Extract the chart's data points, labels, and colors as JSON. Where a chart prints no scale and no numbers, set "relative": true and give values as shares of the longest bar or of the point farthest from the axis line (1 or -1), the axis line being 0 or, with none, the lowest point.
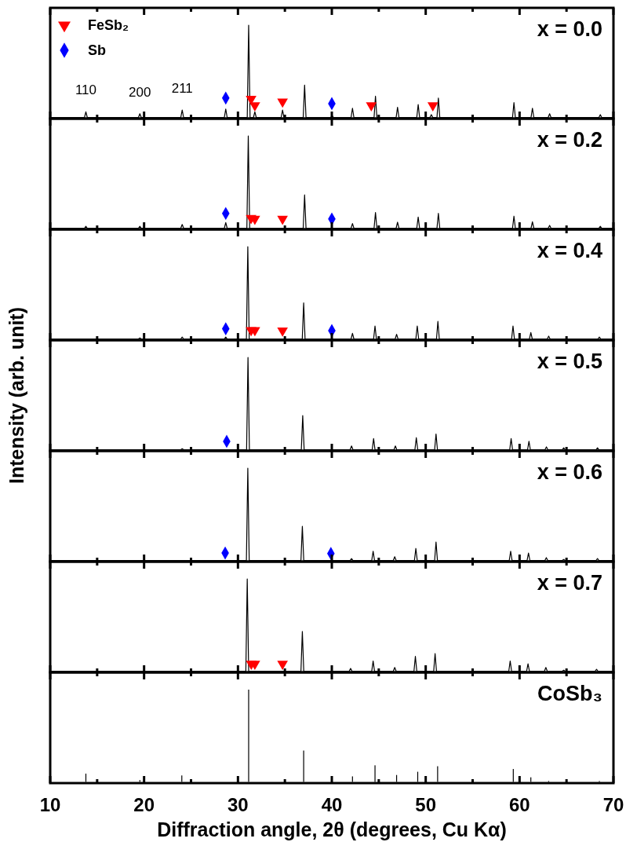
{
  "chart_data": [
    {
      "type": "line",
      "title": "x = 0.0",
      "relative": true,
      "xlim": [
        10,
        70
      ],
      "xticks": [
        10,
        {
          "value": 15,
          "label": null
        },
        20,
        {
          "value": 25,
          "label": null
        },
        30,
        {
          "value": 35,
          "label": null
        },
        40,
        {
          "value": 45,
          "label": null
        },
        50,
        {
          "value": 55,
          "label": null
        },
        60,
        {
          "value": 65,
          "label": null
        },
        70
      ],
      "tick_labels": false,
      "legend": "top left",
      "annotations": [
        {
          "text": "110",
          "x": 13.8,
          "y": 0.06
        },
        {
          "text": "200",
          "x": 19.55,
          "y": 0.04
        },
        {
          "text": "211",
          "x": 24.06,
          "y": 0.08
        }
      ],
      "series": [
        {
          "color": "#000000",
          "x": [
            10,
            13.65,
            13.8,
            13.95,
            19.4,
            19.55,
            19.7,
            23.91,
            24.06,
            24.21,
            28.55,
            28.7,
            28.85,
            30.99,
            31.14,
            31.29,
            31.65,
            31.8,
            31.95,
            34.6,
            34.75,
            34.9,
            36.95,
            37.1,
            37.25,
            39.88,
            40.03,
            40.18,
            42.05,
            42.2,
            42.35,
            44.5,
            44.65,
            44.8,
            46.85,
            47.0,
            47.15,
            49.05,
            49.2,
            49.35,
            50.45,
            50.6,
            50.75,
            51.2,
            51.35,
            51.5,
            59.25,
            59.4,
            59.55,
            61.22,
            61.37,
            61.52,
            63.05,
            63.2,
            63.35,
            68.45,
            68.6,
            68.75,
            70
          ],
          "values": [
            0,
            0,
            0.06,
            0,
            0,
            0.04,
            0,
            0,
            0.08,
            0,
            0,
            0.09,
            0,
            0,
            1,
            0,
            0,
            0.06,
            0,
            0,
            0.08,
            0,
            0,
            0.35,
            0,
            0,
            0.02,
            0,
            0,
            0.1,
            0,
            0,
            0.23,
            0,
            0,
            0.11,
            0,
            0,
            0.14,
            0,
            0,
            0.03,
            0,
            0,
            0.21,
            0,
            0,
            0.16,
            0,
            0,
            0.1,
            0,
            0,
            0.04,
            0,
            0,
            0.03,
            0,
            0
          ]
        },
        {
          "type": "scatter",
          "name": "FeSb₂",
          "color": "#ff0000",
          "marker": "triangle",
          "x": [
            31.4,
            31.8,
            34.75,
            44.2,
            50.76
          ],
          "values": [
            0.2,
            0.13,
            0.17,
            0.13,
            0.13
          ]
        },
        {
          "type": "scatter",
          "name": "Sb",
          "color": "#0000ff",
          "marker": "diamond",
          "x": [
            28.7,
            40.0
          ],
          "values": [
            0.21,
            0.15
          ]
        }
      ]
    },
    {
      "type": "line",
      "title": "x = 0.2",
      "relative": true,
      "xlim": [
        10,
        70
      ],
      "xticks": [
        10,
        {
          "value": 15,
          "label": null
        },
        20,
        {
          "value": 25,
          "label": null
        },
        30,
        {
          "value": 35,
          "label": null
        },
        40,
        {
          "value": 45,
          "label": null
        },
        50,
        {
          "value": 55,
          "label": null
        },
        60,
        {
          "value": 65,
          "label": null
        },
        70
      ],
      "tick_labels": false,
      "series": [
        {
          "color": "#000000",
          "x": [
            10,
            13.65,
            13.8,
            13.95,
            19.4,
            19.55,
            19.7,
            23.91,
            24.06,
            24.21,
            28.55,
            28.7,
            28.85,
            30.95,
            31.1,
            31.25,
            36.95,
            37.1,
            37.25,
            42.05,
            42.2,
            42.35,
            44.5,
            44.65,
            44.8,
            46.85,
            47.0,
            47.15,
            49.05,
            49.2,
            49.35,
            51.2,
            51.35,
            51.5,
            59.25,
            59.4,
            59.55,
            61.22,
            61.37,
            61.52,
            63.05,
            63.2,
            63.35,
            68.45,
            68.6,
            68.75,
            70
          ],
          "values": [
            0,
            0,
            0.02,
            0,
            0,
            0.02,
            0,
            0,
            0.04,
            0,
            0,
            0.06,
            0,
            0,
            1,
            0,
            0,
            0.36,
            0,
            0,
            0.05,
            0,
            0,
            0.17,
            0,
            0,
            0.065,
            0,
            0,
            0.12,
            0,
            0,
            0.16,
            0,
            0,
            0.13,
            0,
            0,
            0.07,
            0,
            0,
            0.03,
            0,
            0,
            0.02,
            0,
            0
          ]
        },
        {
          "type": "scatter",
          "color": "#ff0000",
          "marker": "triangle",
          "x": [
            31.4,
            31.8,
            34.75
          ],
          "values": [
            0.11,
            0.1,
            0.1
          ]
        },
        {
          "type": "scatter",
          "color": "#0000ff",
          "marker": "diamond",
          "x": [
            28.7,
            40.0
          ],
          "values": [
            0.16,
            0.1
          ]
        }
      ]
    },
    {
      "type": "line",
      "title": "x = 0.4",
      "relative": true,
      "xlim": [
        10,
        70
      ],
      "xticks": [
        10,
        {
          "value": 15,
          "label": null
        },
        20,
        {
          "value": 25,
          "label": null
        },
        30,
        {
          "value": 35,
          "label": null
        },
        40,
        {
          "value": 45,
          "label": null
        },
        50,
        {
          "value": 55,
          "label": null
        },
        60,
        {
          "value": 65,
          "label": null
        },
        70
      ],
      "tick_labels": false,
      "series": [
        {
          "color": "#000000",
          "x": [
            10,
            19.4,
            19.55,
            19.7,
            23.91,
            24.06,
            24.21,
            28.55,
            28.7,
            28.85,
            30.9,
            31.05,
            31.2,
            36.85,
            37.0,
            37.15,
            42.05,
            42.2,
            42.35,
            44.45,
            44.6,
            44.75,
            46.75,
            46.9,
            47.05,
            48.95,
            49.1,
            49.25,
            51.15,
            51.3,
            51.45,
            59.15,
            59.3,
            59.45,
            61.05,
            61.2,
            61.35,
            62.95,
            63.1,
            63.25,
            68.35,
            68.5,
            68.65,
            70
          ],
          "values": [
            0,
            0,
            0.01,
            0,
            0,
            0.02,
            0,
            0,
            0.02,
            0,
            0,
            1,
            0,
            0,
            0.39,
            0,
            0,
            0.06,
            0,
            0,
            0.14,
            0,
            0,
            0.05,
            0,
            0,
            0.14,
            0,
            0,
            0.19,
            0,
            0,
            0.14,
            0,
            0,
            0.07,
            0,
            0,
            0.03,
            0,
            0,
            0.02,
            0,
            0
          ]
        },
        {
          "type": "scatter",
          "color": "#ff0000",
          "marker": "triangle",
          "x": [
            31.4,
            31.8,
            34.75
          ],
          "values": [
            0.095,
            0.095,
            0.09
          ]
        },
        {
          "type": "scatter",
          "color": "#0000ff",
          "marker": "diamond",
          "x": [
            28.7,
            40.0
          ],
          "values": [
            0.11,
            0.09
          ]
        }
      ]
    },
    {
      "type": "line",
      "title": "x = 0.5",
      "ylabel": "Intensity (arb. unit)",
      "relative": true,
      "xlim": [
        10,
        70
      ],
      "xticks": [
        10,
        {
          "value": 15,
          "label": null
        },
        20,
        {
          "value": 25,
          "label": null
        },
        30,
        {
          "value": 35,
          "label": null
        },
        40,
        {
          "value": 45,
          "label": null
        },
        50,
        {
          "value": 55,
          "label": null
        },
        60,
        {
          "value": 65,
          "label": null
        },
        70
      ],
      "tick_labels": false,
      "series": [
        {
          "color": "#000000",
          "x": [
            10,
            23.91,
            24.06,
            24.21,
            30.92,
            31.07,
            31.22,
            36.75,
            36.9,
            37.05,
            41.95,
            42.1,
            42.25,
            44.3,
            44.45,
            44.6,
            46.62,
            46.77,
            46.92,
            48.85,
            49.0,
            49.15,
            50.95,
            51.1,
            51.25,
            58.95,
            59.1,
            59.25,
            60.85,
            61.0,
            61.15,
            62.71,
            62.86,
            63.01,
            64.55,
            64.7,
            64.85,
            68.15,
            68.3,
            68.45,
            70
          ],
          "values": [
            0,
            0,
            0.01,
            0,
            0,
            1,
            0,
            0,
            0.37,
            0,
            0,
            0.04,
            0,
            0,
            0.12,
            0,
            0,
            0.04,
            0,
            0,
            0.13,
            0,
            0,
            0.17,
            0,
            0,
            0.12,
            0,
            0,
            0.09,
            0,
            0,
            0.03,
            0,
            0,
            0.02,
            0,
            0,
            0.02,
            0,
            0
          ]
        },
        {
          "type": "scatter",
          "color": "#0000ff",
          "marker": "diamond",
          "x": [
            28.8
          ],
          "values": [
            0.09
          ]
        }
      ]
    },
    {
      "type": "line",
      "title": "x = 0.6",
      "relative": true,
      "xlim": [
        10,
        70
      ],
      "xticks": [
        10,
        {
          "value": 15,
          "label": null
        },
        20,
        {
          "value": 25,
          "label": null
        },
        30,
        {
          "value": 35,
          "label": null
        },
        40,
        {
          "value": 45,
          "label": null
        },
        50,
        {
          "value": 55,
          "label": null
        },
        60,
        {
          "value": 65,
          "label": null
        },
        70
      ],
      "tick_labels": false,
      "series": [
        {
          "color": "#000000",
          "x": [
            10,
            30.9,
            31.05,
            31.2,
            36.71,
            36.86,
            37.01,
            41.95,
            42.1,
            42.25,
            44.25,
            44.4,
            44.55,
            46.55,
            46.7,
            46.85,
            48.8,
            48.95,
            49.1,
            50.95,
            51.1,
            51.25,
            58.9,
            59.05,
            59.2,
            60.8,
            60.95,
            61.1,
            62.7,
            62.85,
            63.0,
            64.55,
            64.7,
            64.85,
            68.15,
            68.3,
            68.45,
            70
          ],
          "values": [
            0,
            0,
            1,
            0,
            0,
            0.37,
            0,
            0,
            0.02,
            0,
            0,
            0.1,
            0,
            0,
            0.04,
            0,
            0,
            0.13,
            0,
            0,
            0.2,
            0,
            0,
            0.1,
            0,
            0,
            0.08,
            0,
            0,
            0.03,
            0,
            0,
            0.01,
            0,
            0,
            0.02,
            0,
            0
          ]
        },
        {
          "type": "scatter",
          "color": "#0000ff",
          "marker": "diamond",
          "x": [
            28.64,
            39.9
          ],
          "values": [
            0.08,
            0.075
          ]
        }
      ]
    },
    {
      "type": "line",
      "title": "x = 0.7",
      "relative": true,
      "xlim": [
        10,
        70
      ],
      "xticks": [
        10,
        {
          "value": 15,
          "label": null
        },
        20,
        {
          "value": 25,
          "label": null
        },
        30,
        {
          "value": 35,
          "label": null
        },
        40,
        {
          "value": 45,
          "label": null
        },
        50,
        {
          "value": 55,
          "label": null
        },
        60,
        {
          "value": 65,
          "label": null
        },
        70
      ],
      "tick_labels": false,
      "series": [
        {
          "color": "#000000",
          "x": [
            10,
            30.84,
            30.99,
            31.14,
            36.71,
            36.86,
            37.01,
            41.85,
            42.0,
            42.15,
            44.25,
            44.4,
            44.55,
            46.55,
            46.7,
            46.85,
            48.75,
            48.9,
            49.05,
            50.85,
            51.0,
            51.15,
            58.85,
            59.0,
            59.15,
            60.75,
            60.9,
            61.05,
            62.65,
            62.8,
            62.95,
            64.55,
            64.7,
            64.85,
            68.05,
            68.2,
            68.35,
            70
          ],
          "values": [
            0,
            0,
            1,
            0,
            0,
            0.43,
            0,
            0,
            0.03,
            0,
            0,
            0.11,
            0,
            0,
            0.04,
            0,
            0,
            0.16,
            0,
            0,
            0.19,
            0,
            0,
            0.11,
            0,
            0,
            0.08,
            0,
            0,
            0.04,
            0,
            0,
            0.01,
            0,
            0,
            0.02,
            0,
            0
          ]
        },
        {
          "type": "scatter",
          "color": "#ff0000",
          "marker": "triangle",
          "x": [
            31.42,
            31.8,
            34.75
          ],
          "values": [
            0.08,
            0.08,
            0.08
          ]
        }
      ]
    },
    {
      "type": "bar",
      "title": "CoSb₃",
      "xlabel": "Diffraction angle, 2θ (degrees, Cu Kα)",
      "relative": true,
      "xlim": [
        10,
        70
      ],
      "xticks": [
        10,
        {
          "value": 15,
          "label": null
        },
        20,
        {
          "value": 25,
          "label": null
        },
        30,
        {
          "value": 35,
          "label": null
        },
        40,
        {
          "value": 45,
          "label": null
        },
        50,
        {
          "value": 55,
          "label": null
        },
        60,
        {
          "value": 65,
          "label": null
        },
        70
      ],
      "tick_labels": "x",
      "series": [
        {
          "color": "#000000",
          "x": [
            13.8,
            19.55,
            24.02,
            31.14,
            37.0,
            42.2,
            44.6,
            46.9,
            49.15,
            51.27,
            59.33,
            61.2,
            63.1,
            68.5
          ],
          "values": [
            0.09,
            0.02,
            0.07,
            1,
            0.34,
            0.06,
            0.18,
            0.075,
            0.11,
            0.17,
            0.14,
            0.05,
            0.01,
            0.01
          ]
        }
      ]
    }
  ]
}
